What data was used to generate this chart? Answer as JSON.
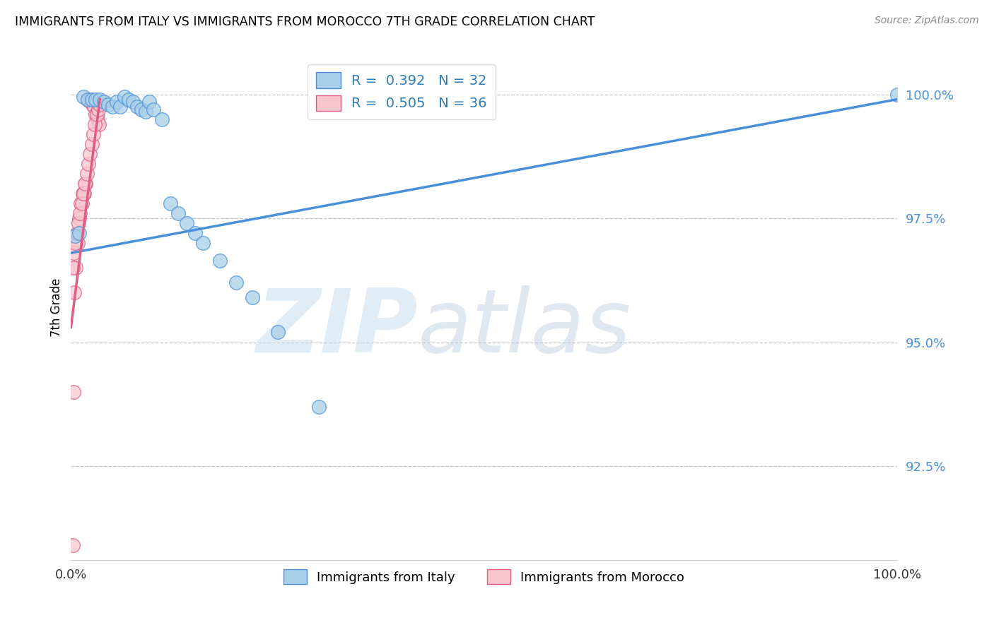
{
  "title": "IMMIGRANTS FROM ITALY VS IMMIGRANTS FROM MOROCCO 7TH GRADE CORRELATION CHART",
  "source": "Source: ZipAtlas.com",
  "ylabel": "7th Grade",
  "x_min": 0.0,
  "x_max": 1.0,
  "y_min": 0.906,
  "y_max": 1.008,
  "ytick_labels": [
    "92.5%",
    "95.0%",
    "97.5%",
    "100.0%"
  ],
  "ytick_values": [
    0.925,
    0.95,
    0.975,
    1.0
  ],
  "legend_r_italy": "R =  0.392",
  "legend_n_italy": "N = 32",
  "legend_r_morocco": "R =  0.505",
  "legend_n_morocco": "N = 36",
  "color_italy": "#a8cfe8",
  "color_morocco": "#f9c6d0",
  "line_color_italy": "#4a90d9",
  "line_color_morocco": "#e05c80",
  "watermark_zip": "ZIP",
  "watermark_atlas": "atlas",
  "grid_color": "#c8c8c8",
  "background_color": "#ffffff",
  "italy_scatter_x": [
    0.005,
    0.01,
    0.015,
    0.02,
    0.025,
    0.03,
    0.035,
    0.04,
    0.045,
    0.05,
    0.055,
    0.06,
    0.065,
    0.07,
    0.075,
    0.08,
    0.085,
    0.09,
    0.095,
    0.1,
    0.11,
    0.12,
    0.13,
    0.14,
    0.15,
    0.16,
    0.18,
    0.2,
    0.22,
    0.25,
    0.3,
    1.0
  ],
  "italy_scatter_y": [
    0.9715,
    0.972,
    0.9995,
    0.999,
    0.999,
    0.999,
    0.999,
    0.9985,
    0.998,
    0.9975,
    0.9985,
    0.9975,
    0.9995,
    0.999,
    0.9985,
    0.9975,
    0.997,
    0.9965,
    0.9985,
    0.997,
    0.995,
    0.978,
    0.976,
    0.974,
    0.972,
    0.97,
    0.9665,
    0.962,
    0.959,
    0.952,
    0.937,
    1.0
  ],
  "morocco_scatter_x": [
    0.002,
    0.004,
    0.006,
    0.008,
    0.01,
    0.012,
    0.014,
    0.016,
    0.018,
    0.02,
    0.022,
    0.024,
    0.026,
    0.028,
    0.03,
    0.032,
    0.034,
    0.002,
    0.003,
    0.005,
    0.007,
    0.009,
    0.011,
    0.013,
    0.015,
    0.017,
    0.019,
    0.021,
    0.023,
    0.025,
    0.027,
    0.029,
    0.031,
    0.033,
    0.035,
    0.003
  ],
  "morocco_scatter_y": [
    0.909,
    0.96,
    0.965,
    0.97,
    0.975,
    0.978,
    0.98,
    0.98,
    0.982,
    0.999,
    0.999,
    0.9985,
    0.998,
    0.9975,
    0.996,
    0.995,
    0.994,
    0.965,
    0.968,
    0.97,
    0.972,
    0.974,
    0.976,
    0.978,
    0.98,
    0.982,
    0.984,
    0.986,
    0.988,
    0.99,
    0.992,
    0.994,
    0.996,
    0.997,
    0.998,
    0.94
  ],
  "italy_line_x0": 0.0,
  "italy_line_y0": 0.968,
  "italy_line_x1": 1.0,
  "italy_line_y1": 0.999,
  "morocco_line_x0": 0.0,
  "morocco_line_y0": 0.953,
  "morocco_line_x1": 0.035,
  "morocco_line_y1": 0.999
}
